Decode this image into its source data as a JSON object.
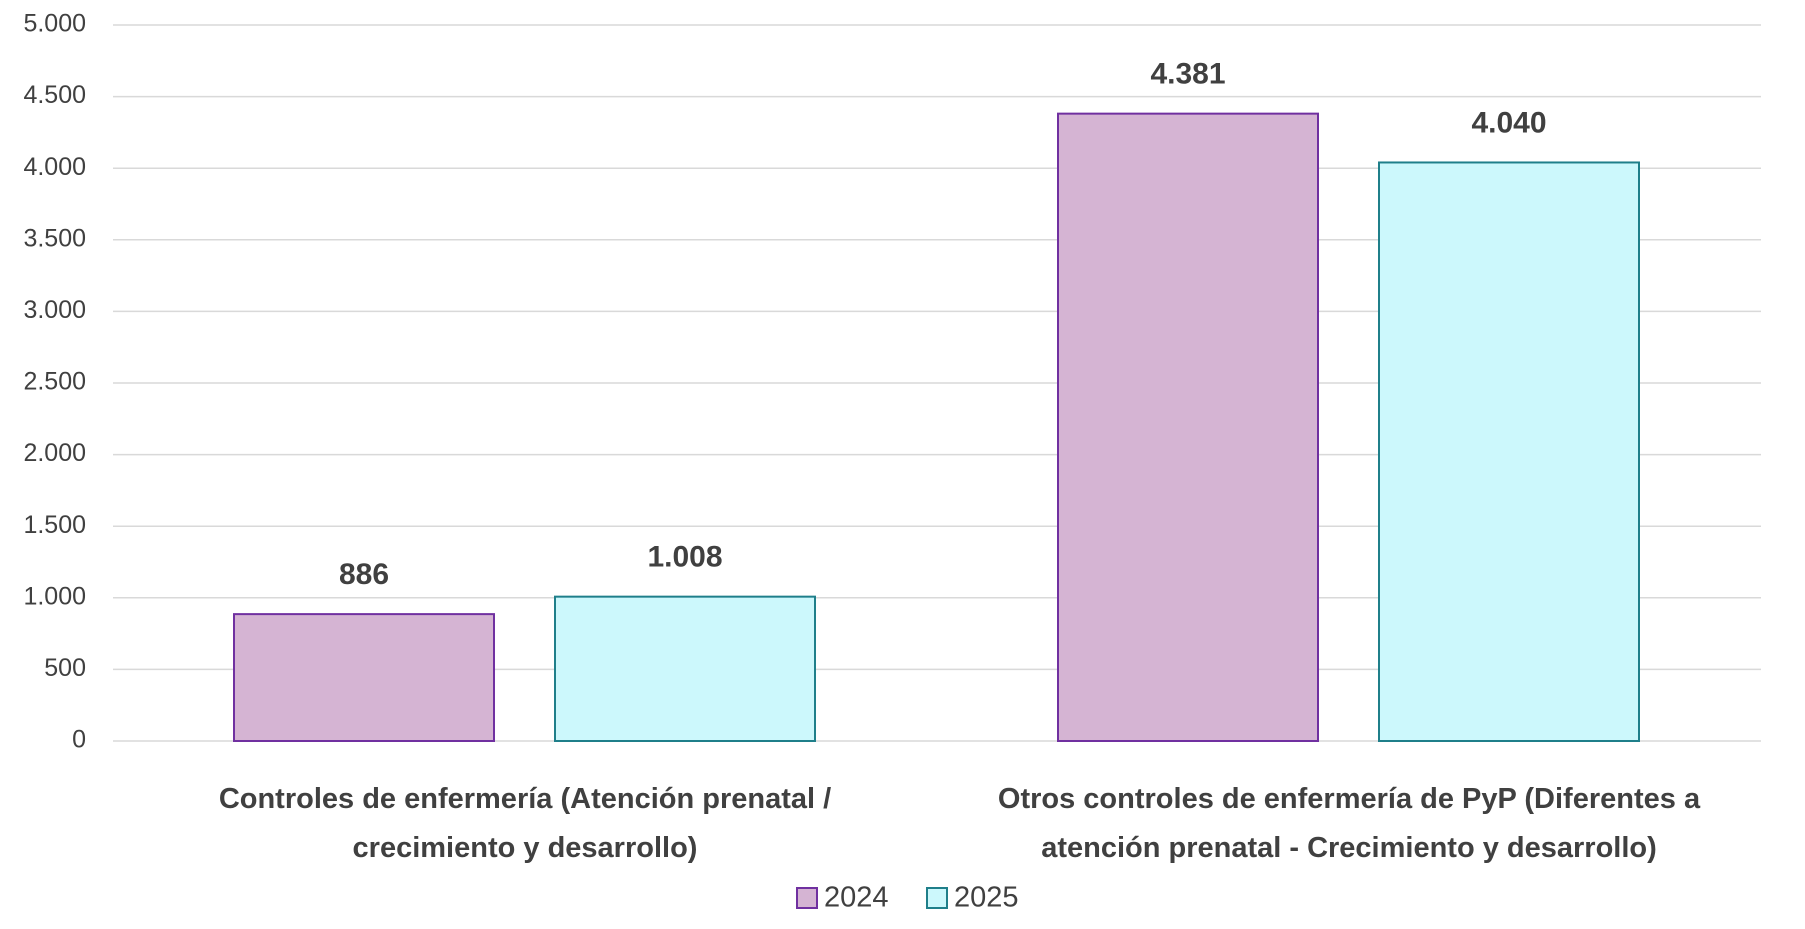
{
  "chart_data": {
    "type": "bar",
    "categories": [
      "Controles de enfermería (Atención prenatal / crecimiento y desarrollo)",
      "Otros controles de enfermería de PyP (Diferentes a atención prenatal - Crecimiento y desarrollo)"
    ],
    "series": [
      {
        "name": "2024",
        "color": "#d5b4d3",
        "edge": "#7030a0",
        "values": [
          886,
          4381
        ],
        "value_labels": [
          "886",
          "4.381"
        ]
      },
      {
        "name": "2025",
        "color": "#ccf8fc",
        "edge": "#1f7f8a",
        "values": [
          1008,
          4040
        ],
        "value_labels": [
          "1.008",
          "4.040"
        ]
      }
    ],
    "ylim": [
      0,
      5000
    ],
    "yticks": [
      0,
      {
        "value": 500,
        "label": "500"
      },
      {
        "value": 1000,
        "label": "1.000"
      },
      {
        "value": 1500,
        "label": "1.500"
      },
      {
        "value": 2000,
        "label": "2.000"
      },
      {
        "value": 2500,
        "label": "2.500"
      },
      {
        "value": 3000,
        "label": "3.000"
      },
      {
        "value": 3500,
        "label": "3.500"
      },
      {
        "value": 4000,
        "label": "4.000"
      },
      {
        "value": 4500,
        "label": "4.500"
      },
      {
        "value": 5000,
        "label": "5.000"
      }
    ],
    "grid": true,
    "legend": "bottom"
  }
}
